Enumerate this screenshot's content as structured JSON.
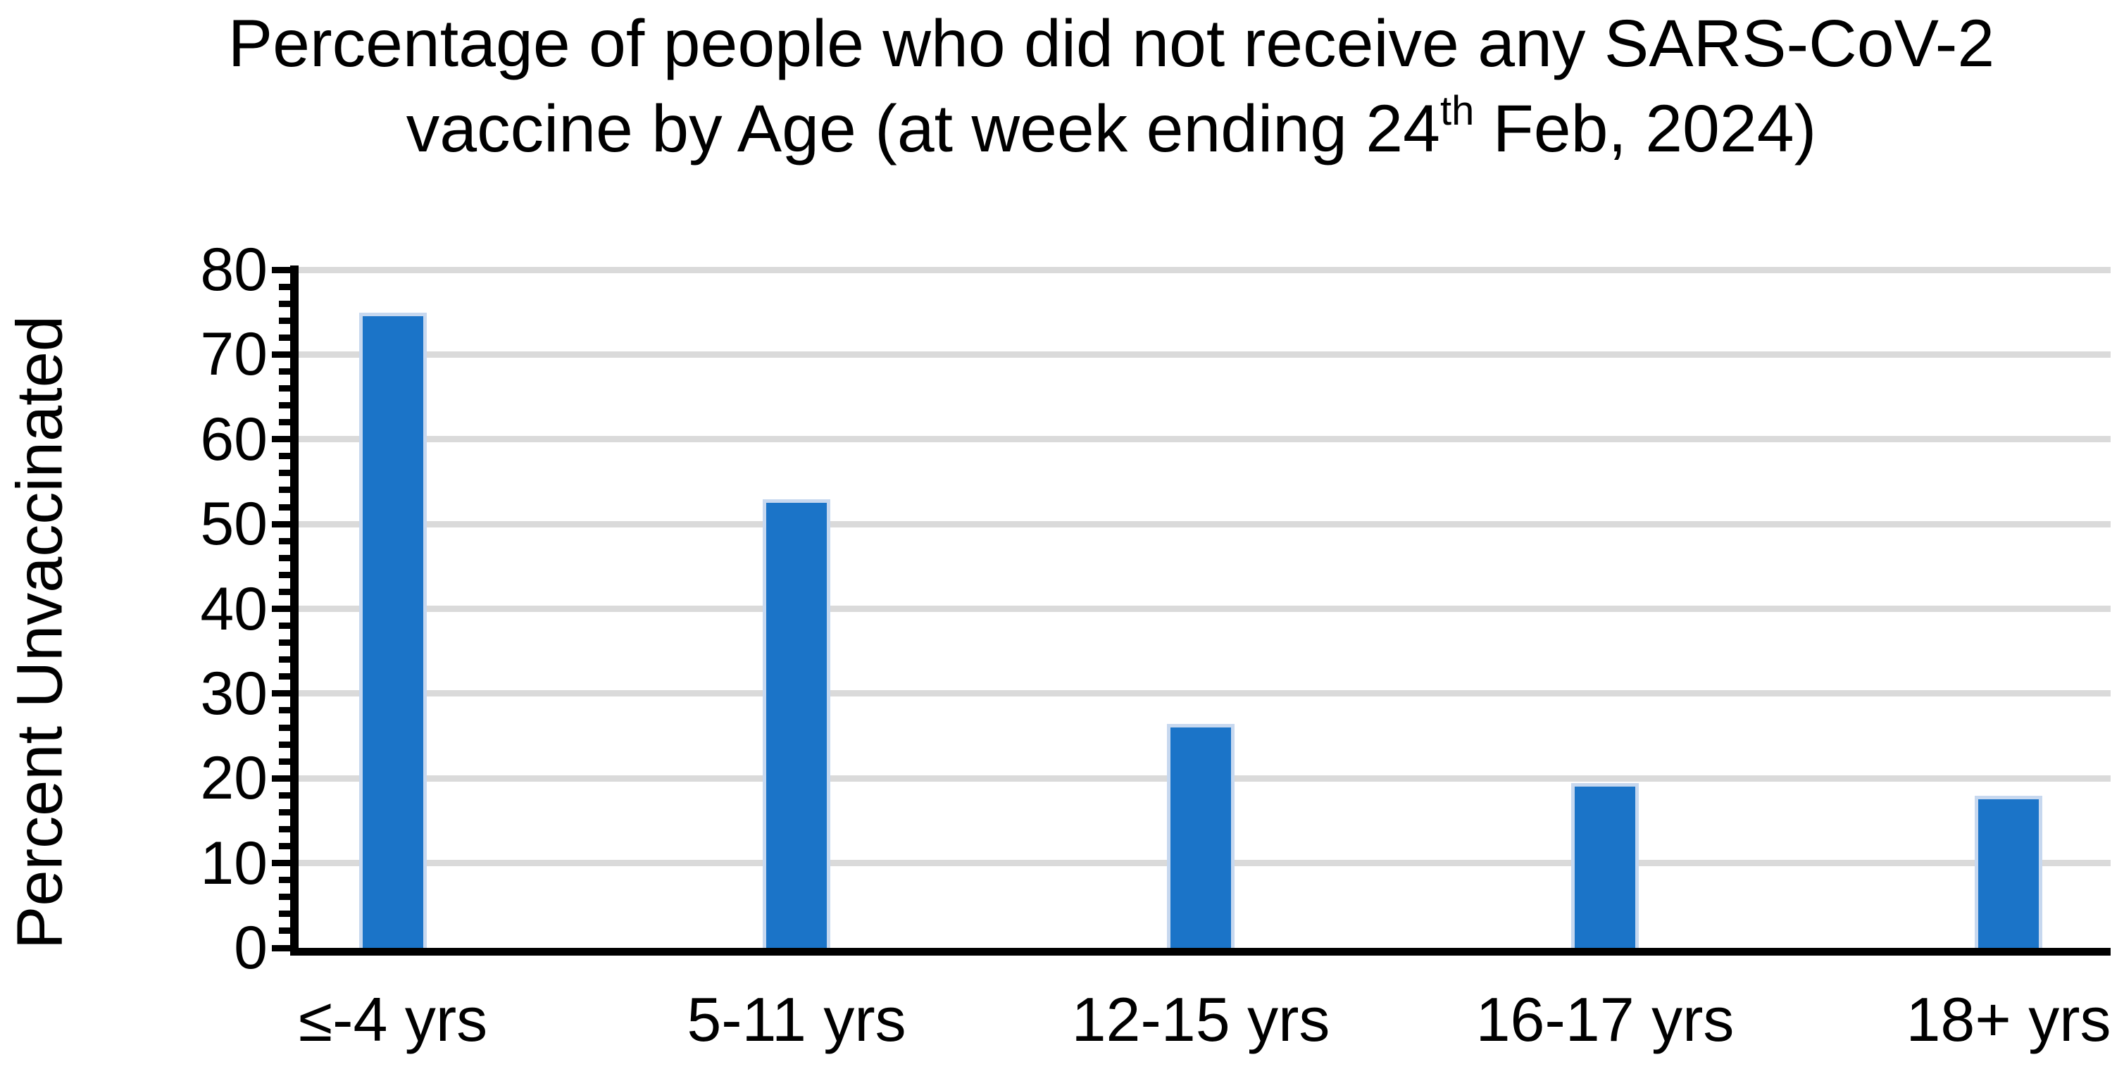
{
  "title": {
    "line1": "Percentage of people who did not receive any SARS-CoV-2",
    "line2_prefix": "vaccine by Age (at week ending 24",
    "line2_superscript": "th",
    "line2_suffix": " Feb, 2024)"
  },
  "y_axis": {
    "label": "Percent Unvaccinated",
    "tick_labels": [
      "0",
      "10",
      "20",
      "30",
      "40",
      "50",
      "60",
      "70",
      "80"
    ],
    "min": 0,
    "max": 80,
    "major_tick_step": 10,
    "minor_tick_step": 2
  },
  "chart_data": {
    "type": "bar",
    "title": "Percentage of people who did not receive any SARS-CoV-2 vaccine by Age (at week ending 24th Feb, 2024)",
    "categories": [
      "≤-4 yrs",
      "5-11 yrs",
      "12-15 yrs",
      "16-17 yrs",
      "18+ yrs"
    ],
    "values": [
      74.5,
      52.5,
      26,
      19,
      17.5
    ],
    "xlabel": "",
    "ylabel": "Percent Unvaccinated",
    "ylim": [
      0,
      80
    ],
    "grid": true,
    "legend": "none",
    "bar_color": "#1B74C8"
  },
  "colors": {
    "bar": "#1B74C8",
    "bar_edge_halo": "#C7D8EF",
    "gridline": "#DADADA",
    "axis": "#000000",
    "text": "#000000",
    "background": "#FFFFFF"
  }
}
